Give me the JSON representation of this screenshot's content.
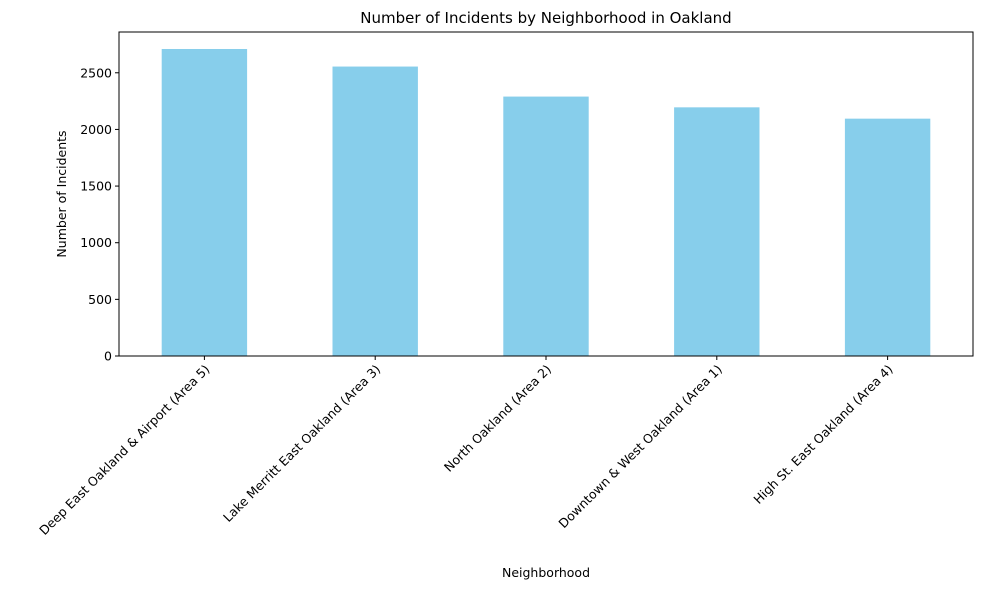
{
  "chart_data": {
    "type": "bar",
    "title": "Number of Incidents by Neighborhood in Oakland",
    "xlabel": "Neighborhood",
    "ylabel": "Number of Incidents",
    "categories": [
      "Deep East Oakland & Airport (Area 5)",
      "Lake Merritt East Oakland (Area 3)",
      "North Oakland (Area 2)",
      "Downtown & West Oakland (Area 1)",
      "High St. East Oakland (Area 4)"
    ],
    "values": [
      2710,
      2555,
      2290,
      2195,
      2095
    ],
    "ylim": [
      0,
      2860
    ],
    "yticks": [
      0,
      500,
      1000,
      1500,
      2000,
      2500
    ],
    "ytick_labels": [
      "0",
      "500",
      "1000",
      "1500",
      "2000",
      "2500"
    ],
    "bar_color": "#87ceeb",
    "grid": false,
    "legend": "none"
  }
}
